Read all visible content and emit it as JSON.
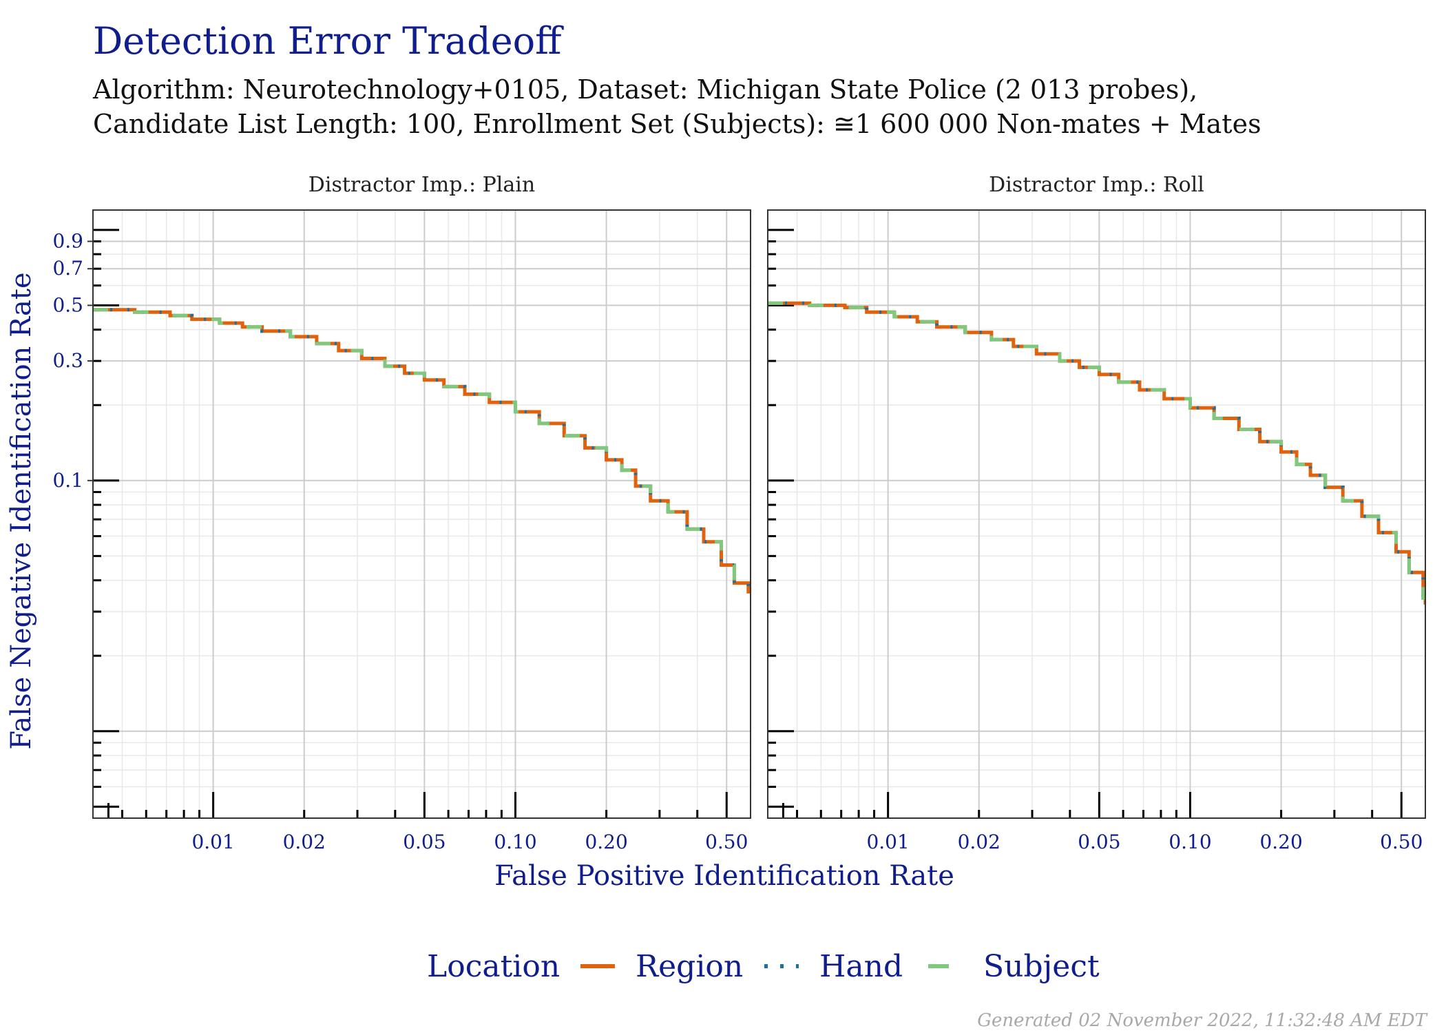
{
  "colors": {
    "title": "#0f1e8c",
    "region": "#e0620d",
    "hand": "#1f6f9f",
    "subject": "#7fc97f",
    "grid_major": "#cccccc",
    "grid_minor": "#e8e8e8",
    "panel_border": "#333333"
  },
  "chart_data": {
    "type": "line",
    "title": "Detection Error Tradeoff",
    "subtitle_lines": [
      "Algorithm: Neurotechnology+0105, Dataset: Michigan State Police (2 013 probes),",
      "Candidate List Length: 100, Enrollment Set (Subjects): ≅1 600 000 Non-mates + Mates"
    ],
    "xlabel": "False Positive Identification Rate",
    "ylabel": "False Negative Identification Rate",
    "x_scale": "log",
    "y_scale": "log",
    "xlim": [
      0.004,
      0.6
    ],
    "ylim": [
      0.0045,
      1.2
    ],
    "x_ticks": [
      0.01,
      0.02,
      0.05,
      0.1,
      0.2,
      0.5
    ],
    "x_tick_labels": [
      "0.01",
      "0.02",
      "0.05",
      "0.10",
      "0.20",
      "0.50"
    ],
    "y_ticks": [
      0.1,
      0.3,
      0.5,
      0.7,
      0.9
    ],
    "y_tick_labels": [
      "0.1",
      "0.3",
      "0.5",
      "0.7",
      "0.9"
    ],
    "grid": true,
    "legend": {
      "title": "Location",
      "position": "bottom",
      "entries": [
        "Region",
        "Hand",
        "Subject"
      ]
    },
    "panels": [
      {
        "strip_label": "Distractor Imp.: Plain",
        "series": [
          {
            "name": "Region",
            "x": [
              0.004,
              0.0055,
              0.0072,
              0.0085,
              0.0105,
              0.0125,
              0.0145,
              0.018,
              0.022,
              0.026,
              0.031,
              0.037,
              0.043,
              0.05,
              0.058,
              0.068,
              0.082,
              0.1,
              0.12,
              0.145,
              0.17,
              0.2,
              0.225,
              0.25,
              0.28,
              0.32,
              0.37,
              0.42,
              0.48,
              0.53,
              0.59,
              0.6
            ],
            "y": [
              0.48,
              0.47,
              0.455,
              0.44,
              0.425,
              0.41,
              0.395,
              0.375,
              0.352,
              0.33,
              0.307,
              0.286,
              0.268,
              0.252,
              0.237,
              0.221,
              0.205,
              0.188,
              0.169,
              0.151,
              0.135,
              0.121,
              0.11,
              0.095,
              0.083,
              0.075,
              0.064,
              0.057,
              0.046,
              0.039,
              0.036,
              0.036
            ]
          },
          {
            "name": "Hand",
            "x": [
              0.004,
              0.0055,
              0.0072,
              0.0085,
              0.0105,
              0.0125,
              0.0145,
              0.018,
              0.022,
              0.026,
              0.031,
              0.037,
              0.043,
              0.05,
              0.058,
              0.068,
              0.082,
              0.1,
              0.12,
              0.145,
              0.17,
              0.2,
              0.225,
              0.25,
              0.28,
              0.32,
              0.37,
              0.42,
              0.48,
              0.53,
              0.59,
              0.6
            ],
            "y": [
              0.48,
              0.47,
              0.455,
              0.44,
              0.425,
              0.41,
              0.395,
              0.375,
              0.352,
              0.33,
              0.307,
              0.286,
              0.268,
              0.252,
              0.237,
              0.221,
              0.205,
              0.188,
              0.169,
              0.151,
              0.135,
              0.121,
              0.11,
              0.095,
              0.083,
              0.075,
              0.064,
              0.057,
              0.046,
              0.039,
              0.036,
              0.036
            ]
          },
          {
            "name": "Subject",
            "x": [
              0.004,
              0.0055,
              0.0072,
              0.0085,
              0.0105,
              0.0125,
              0.0145,
              0.018,
              0.022,
              0.026,
              0.031,
              0.037,
              0.043,
              0.05,
              0.058,
              0.068,
              0.082,
              0.1,
              0.12,
              0.145,
              0.17,
              0.2,
              0.225,
              0.25,
              0.28,
              0.32,
              0.37,
              0.42,
              0.48,
              0.53,
              0.59,
              0.6
            ],
            "y": [
              0.48,
              0.47,
              0.455,
              0.44,
              0.425,
              0.41,
              0.395,
              0.375,
              0.352,
              0.33,
              0.307,
              0.286,
              0.268,
              0.252,
              0.237,
              0.221,
              0.205,
              0.188,
              0.169,
              0.151,
              0.135,
              0.121,
              0.11,
              0.095,
              0.083,
              0.075,
              0.064,
              0.057,
              0.046,
              0.039,
              0.036,
              0.036
            ]
          }
        ]
      },
      {
        "strip_label": "Distractor Imp.: Roll",
        "series": [
          {
            "name": "Region",
            "x": [
              0.004,
              0.0055,
              0.0072,
              0.0085,
              0.0105,
              0.0125,
              0.0145,
              0.018,
              0.022,
              0.026,
              0.031,
              0.037,
              0.043,
              0.05,
              0.058,
              0.068,
              0.082,
              0.1,
              0.12,
              0.145,
              0.17,
              0.2,
              0.225,
              0.25,
              0.28,
              0.32,
              0.37,
              0.42,
              0.48,
              0.53,
              0.59,
              0.6
            ],
            "y": [
              0.51,
              0.5,
              0.49,
              0.47,
              0.45,
              0.43,
              0.41,
              0.39,
              0.365,
              0.343,
              0.32,
              0.3,
              0.283,
              0.265,
              0.247,
              0.23,
              0.212,
              0.195,
              0.177,
              0.16,
              0.143,
              0.13,
              0.116,
              0.105,
              0.094,
              0.083,
              0.072,
              0.062,
              0.052,
              0.043,
              0.034,
              0.032
            ]
          },
          {
            "name": "Hand",
            "x": [
              0.004,
              0.0055,
              0.0072,
              0.0085,
              0.0105,
              0.0125,
              0.0145,
              0.018,
              0.022,
              0.026,
              0.031,
              0.037,
              0.043,
              0.05,
              0.058,
              0.068,
              0.082,
              0.1,
              0.12,
              0.145,
              0.17,
              0.2,
              0.225,
              0.25,
              0.28,
              0.32,
              0.37,
              0.42,
              0.48,
              0.53,
              0.59,
              0.6
            ],
            "y": [
              0.51,
              0.5,
              0.49,
              0.47,
              0.45,
              0.43,
              0.41,
              0.39,
              0.365,
              0.343,
              0.32,
              0.3,
              0.283,
              0.265,
              0.247,
              0.23,
              0.212,
              0.195,
              0.177,
              0.16,
              0.143,
              0.13,
              0.116,
              0.105,
              0.094,
              0.083,
              0.072,
              0.062,
              0.052,
              0.043,
              0.034,
              0.032
            ]
          },
          {
            "name": "Subject",
            "x": [
              0.004,
              0.0055,
              0.0072,
              0.0085,
              0.0105,
              0.0125,
              0.0145,
              0.018,
              0.022,
              0.026,
              0.031,
              0.037,
              0.043,
              0.05,
              0.058,
              0.068,
              0.082,
              0.1,
              0.12,
              0.145,
              0.17,
              0.2,
              0.225,
              0.25,
              0.28,
              0.32,
              0.37,
              0.42,
              0.48,
              0.53,
              0.59,
              0.6
            ],
            "y": [
              0.51,
              0.5,
              0.49,
              0.47,
              0.45,
              0.43,
              0.41,
              0.39,
              0.365,
              0.343,
              0.32,
              0.3,
              0.283,
              0.265,
              0.247,
              0.23,
              0.212,
              0.195,
              0.177,
              0.16,
              0.143,
              0.13,
              0.116,
              0.105,
              0.094,
              0.083,
              0.072,
              0.062,
              0.052,
              0.043,
              0.034,
              0.032
            ]
          }
        ]
      }
    ]
  },
  "footer": "Generated 02 November 2022, 11:32:48 AM EDT"
}
